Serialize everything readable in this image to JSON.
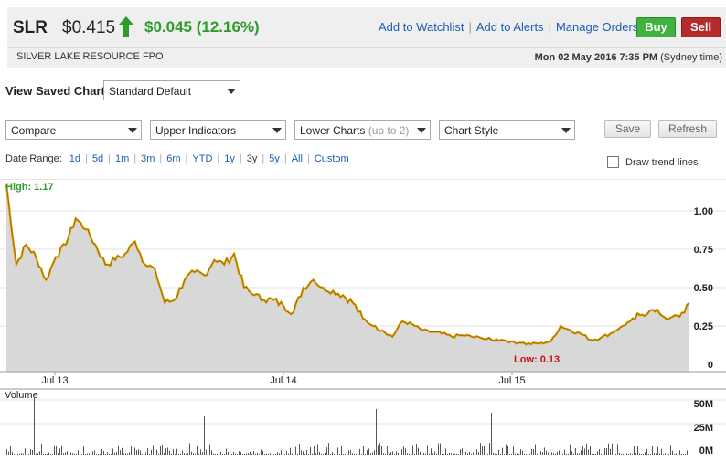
{
  "header": {
    "ticker": "SLR",
    "price": "$0.415",
    "change": "$0.045 (12.16%)",
    "company": "SILVER LAKE RESOURCE FPO",
    "datetime": "Mon 02 May 2016 7:35 PM",
    "timezone": "(Sydney time)",
    "links": [
      "Add to Watchlist",
      "Add to Alerts",
      "Manage Orders"
    ],
    "buy_label": "Buy",
    "sell_label": "Sell",
    "colors": {
      "up": "#2d9c2d",
      "buy": "#3fb23f",
      "sell": "#b52a2a",
      "link": "#1a5db4"
    }
  },
  "controls": {
    "view_saved_label": "View Saved Chart:",
    "saved_chart": "Standard Default",
    "compare": "Compare",
    "upper": "Upper Indicators",
    "lower": "Lower Charts",
    "lower_note": "(up to 2)",
    "style": "Chart Style",
    "save": "Save",
    "refresh": "Refresh",
    "date_range_label": "Date Range:",
    "ranges": [
      "1d",
      "5d",
      "1m",
      "3m",
      "6m",
      "YTD",
      "1y",
      "3y",
      "5y",
      "All",
      "Custom"
    ],
    "active_range": "3y",
    "trend_label": "Draw trend lines"
  },
  "chart_data": [
    {
      "type": "area",
      "title": "",
      "high_label": "High: 1.17",
      "low_label": "Low: 0.13",
      "x_ticks": [
        "Jul 13",
        "Jul 14",
        "Jul 15"
      ],
      "y_ticks": [
        "1.00",
        "0.75",
        "0.50",
        "0.25",
        "0"
      ],
      "ylim": [
        0,
        1.2
      ],
      "x_range": [
        "May 2013",
        "May 2016"
      ],
      "series": [
        {
          "values": [
            1.17,
            0.65,
            0.78,
            0.7,
            0.55,
            0.7,
            0.78,
            0.95,
            0.88,
            0.78,
            0.65,
            0.68,
            0.72,
            0.8,
            0.65,
            0.62,
            0.4,
            0.42,
            0.55,
            0.6,
            0.58,
            0.68,
            0.65,
            0.72,
            0.5,
            0.45,
            0.42,
            0.42,
            0.38,
            0.34,
            0.5,
            0.55,
            0.5,
            0.48,
            0.45,
            0.4,
            0.3,
            0.25,
            0.22,
            0.18,
            0.28,
            0.26,
            0.22,
            0.21,
            0.2,
            0.18,
            0.19,
            0.18,
            0.17,
            0.16,
            0.16,
            0.15,
            0.14,
            0.13,
            0.14,
            0.15,
            0.25,
            0.22,
            0.2,
            0.16,
            0.17,
            0.2,
            0.24,
            0.28,
            0.32,
            0.35,
            0.33,
            0.3,
            0.31,
            0.4
          ]
        }
      ],
      "line_color": "#e8a400",
      "area_color": "#d8d8d8"
    },
    {
      "type": "bar",
      "title": "Volume",
      "y_ticks": [
        "50M",
        "25M",
        "0M"
      ],
      "ylim": [
        0,
        60
      ],
      "bar_color": "#555555"
    }
  ]
}
